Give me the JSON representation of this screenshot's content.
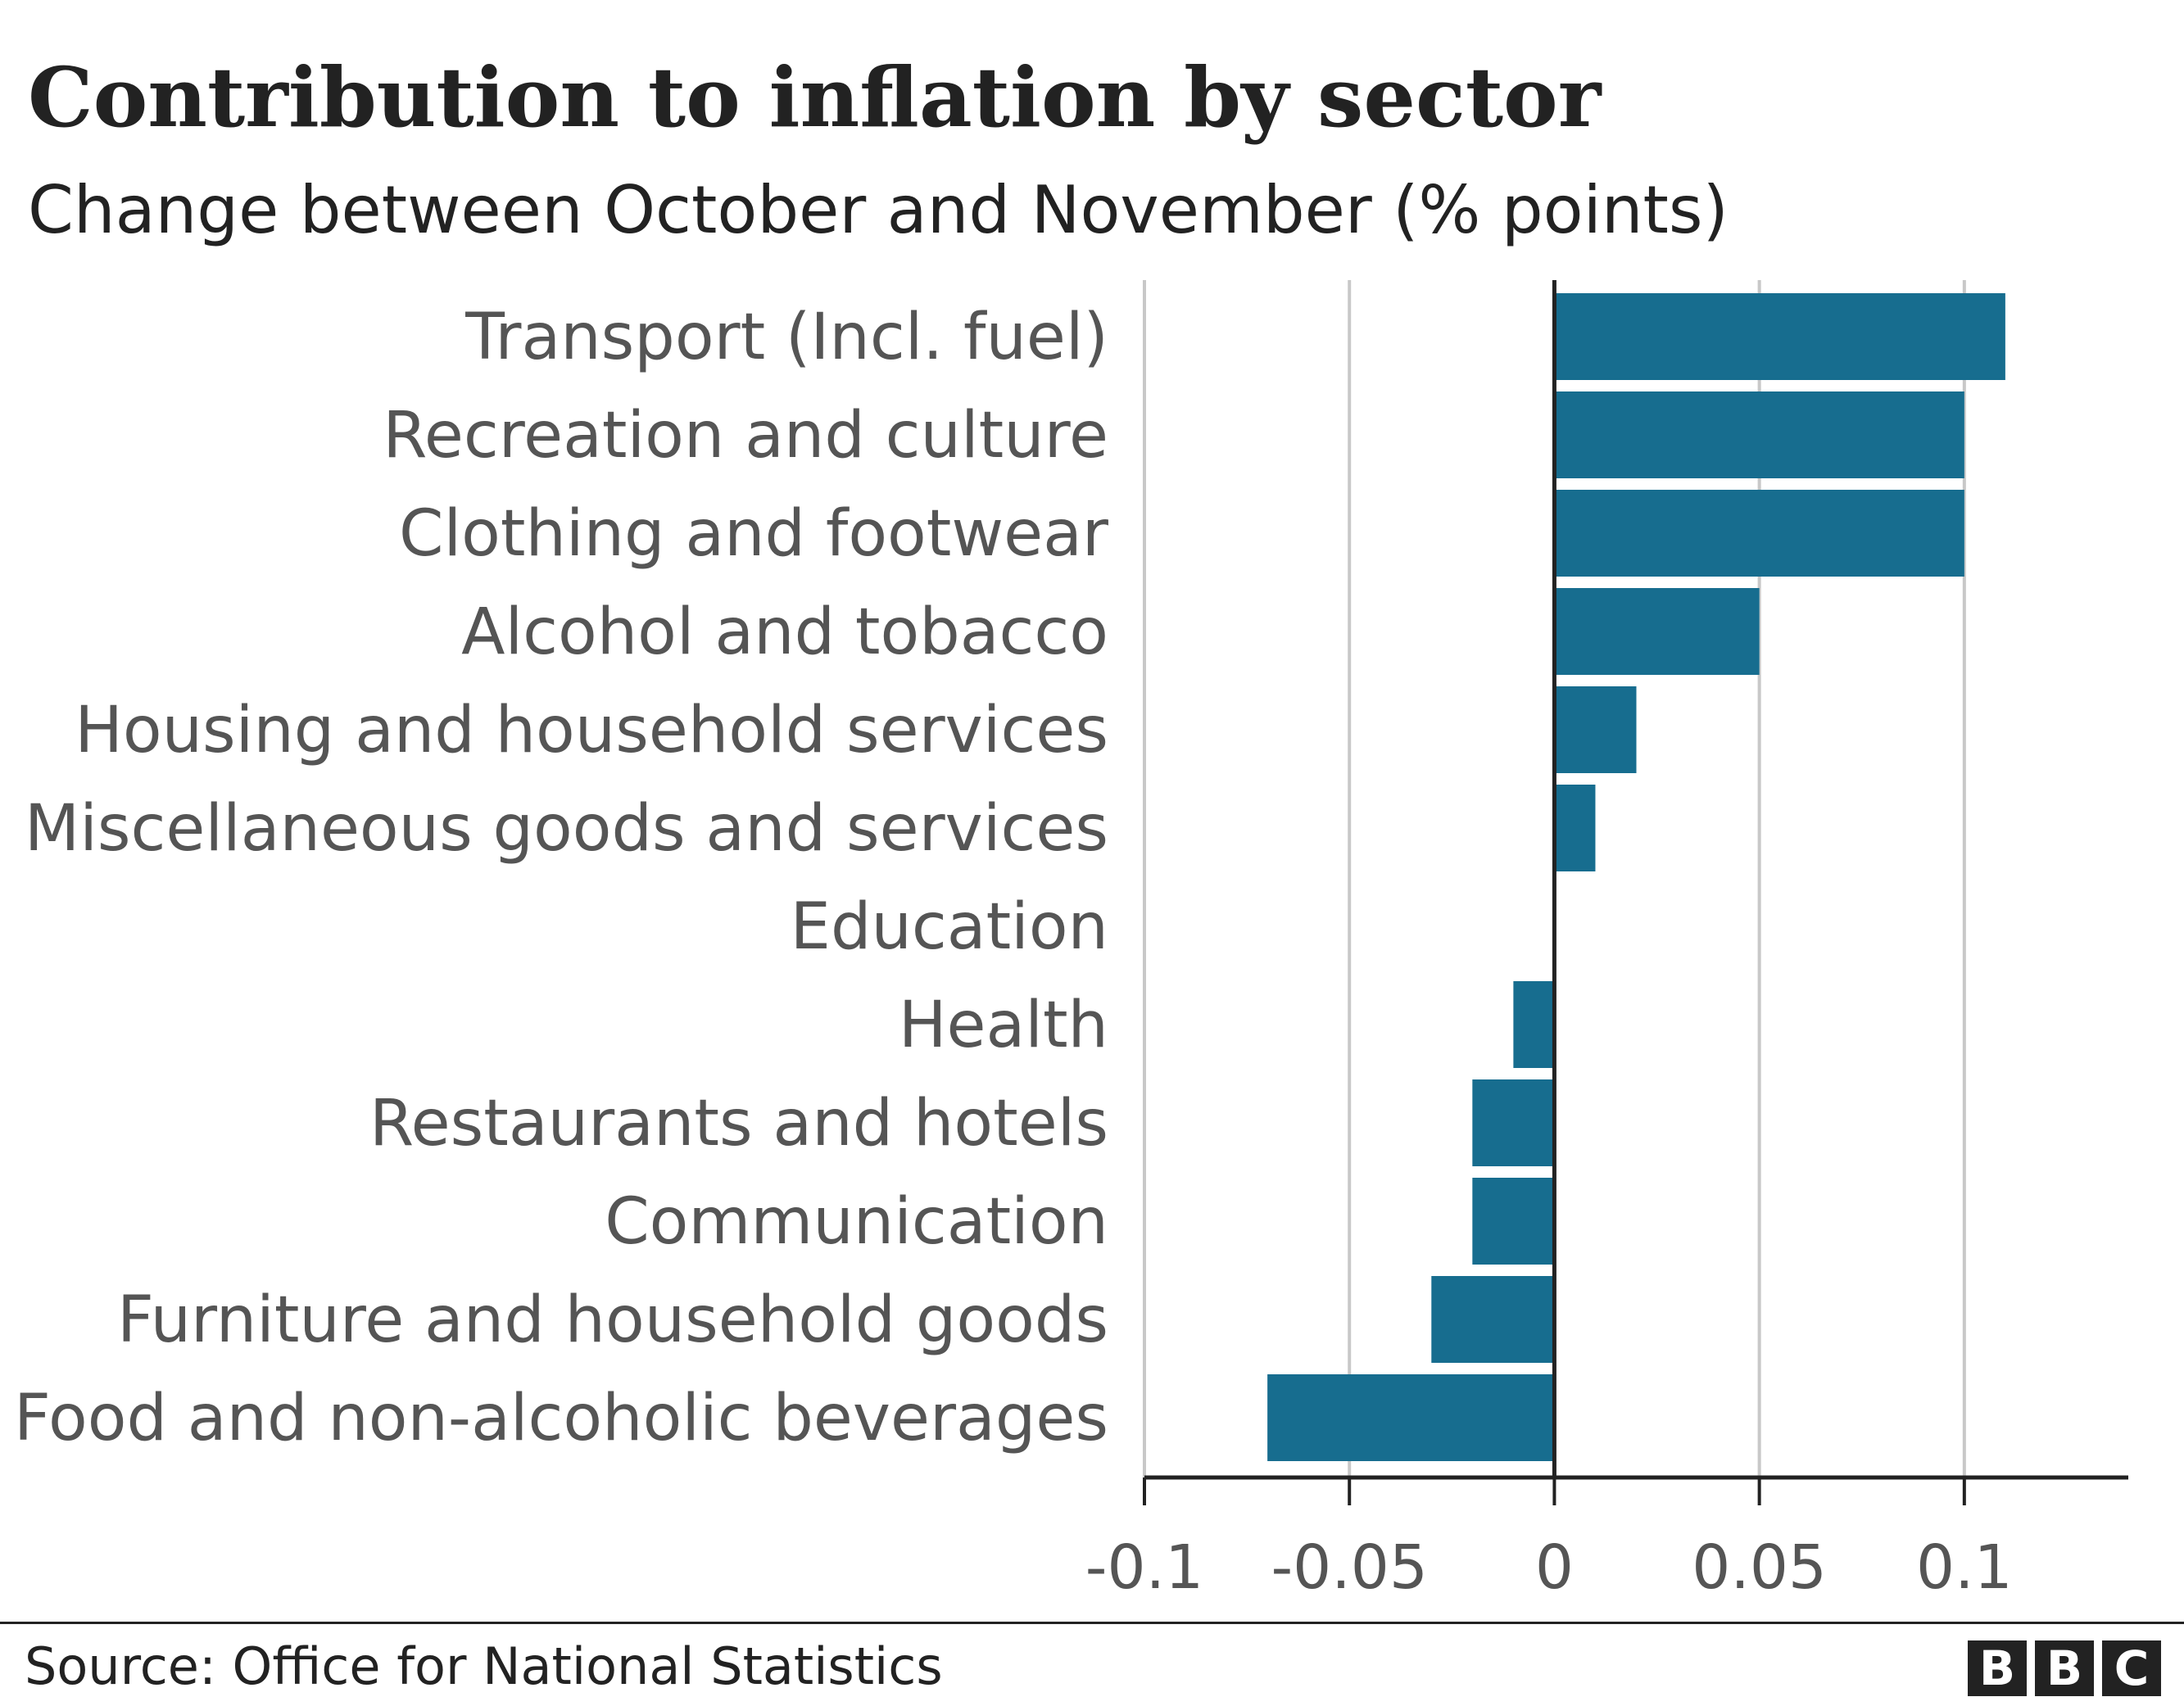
{
  "chart_data": {
    "type": "bar",
    "orientation": "horizontal",
    "title": "Contribution to inflation by sector",
    "subtitle": "Change between October and November (% points)",
    "categories": [
      "Transport (Incl. fuel)",
      "Recreation and culture",
      "Clothing and footwear",
      "Alcohol and tobacco",
      "Housing and household services",
      "Miscellaneous goods and services",
      "Education",
      "Health",
      "Restaurants and hotels",
      "Communication",
      "Furniture and household goods",
      "Food and non-alcoholic beverages"
    ],
    "values": [
      0.11,
      0.1,
      0.1,
      0.05,
      0.02,
      0.01,
      0,
      -0.01,
      -0.02,
      -0.02,
      -0.03,
      -0.07
    ],
    "xlim": [
      -0.1,
      0.14
    ],
    "xticks": [
      -0.1,
      -0.05,
      0,
      0.05,
      0.1
    ],
    "xtick_labels": [
      "-0.1",
      "-0.05",
      "0",
      "0.05",
      "0.1"
    ],
    "grid": true,
    "bar_color": "#176d8f"
  },
  "footer": {
    "source": "Source: Office for National Statistics",
    "logo": [
      "B",
      "B",
      "C"
    ]
  }
}
